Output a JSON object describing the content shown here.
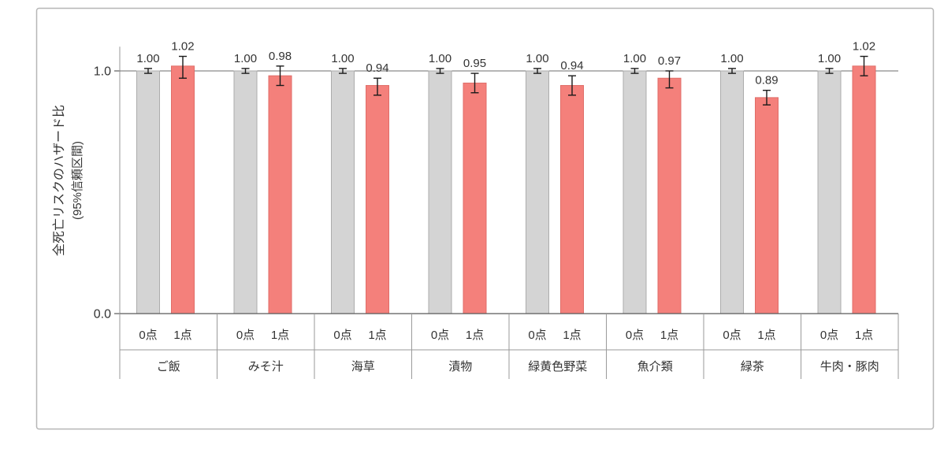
{
  "chart_data": {
    "type": "bar",
    "title": "",
    "ylabel": "全死亡リスクのハザード比",
    "ylabel_sub": "(95%信頼区間)",
    "y_ticks": [
      {
        "label": "1.0",
        "value": 1.0
      },
      {
        "label": "0.0",
        "value": 0.0
      }
    ],
    "ylim": [
      0.0,
      1.1
    ],
    "reference_line": 1.0,
    "grid": "off",
    "legend": "none",
    "categories": [
      "ご飯",
      "みそ汁",
      "海草",
      "漬物",
      "緑黄色野菜",
      "魚介類",
      "緑茶",
      "牛肉・豚肉"
    ],
    "group_labels": [
      "0点",
      "1点"
    ],
    "series": [
      {
        "name": "0点",
        "color": "#D4D4D4",
        "border": "#ACACAC",
        "values": [
          1.0,
          1.0,
          1.0,
          1.0,
          1.0,
          1.0,
          1.0,
          1.0
        ],
        "labels": [
          "1.00",
          "1.00",
          "1.00",
          "1.00",
          "1.00",
          "1.00",
          "1.00",
          "1.00"
        ],
        "ci_low": [
          0.99,
          0.99,
          0.99,
          0.99,
          0.99,
          0.99,
          0.99,
          0.99
        ],
        "ci_high": [
          1.01,
          1.01,
          1.01,
          1.01,
          1.01,
          1.01,
          1.01,
          1.01
        ]
      },
      {
        "name": "1点",
        "color": "#F4807B",
        "border": "#E06D68",
        "values": [
          1.02,
          0.98,
          0.94,
          0.95,
          0.94,
          0.97,
          0.89,
          1.02
        ],
        "labels": [
          "1.02",
          "0.98",
          "0.94",
          "0.95",
          "0.94",
          "0.97",
          "0.89",
          "1.02"
        ],
        "ci_low": [
          0.97,
          0.94,
          0.9,
          0.91,
          0.9,
          0.93,
          0.86,
          0.98
        ],
        "ci_high": [
          1.06,
          1.02,
          0.97,
          0.99,
          0.98,
          1.0,
          0.92,
          1.06
        ]
      }
    ],
    "error_bar_color": "#1a1a1a"
  },
  "style": {
    "panel_border": "#b6b6b6",
    "axis_color": "#595959",
    "grid_line_color": "#6e6e6e",
    "divider_color": "#9a9a9a",
    "text_color": "#333333",
    "background": "#ffffff"
  }
}
